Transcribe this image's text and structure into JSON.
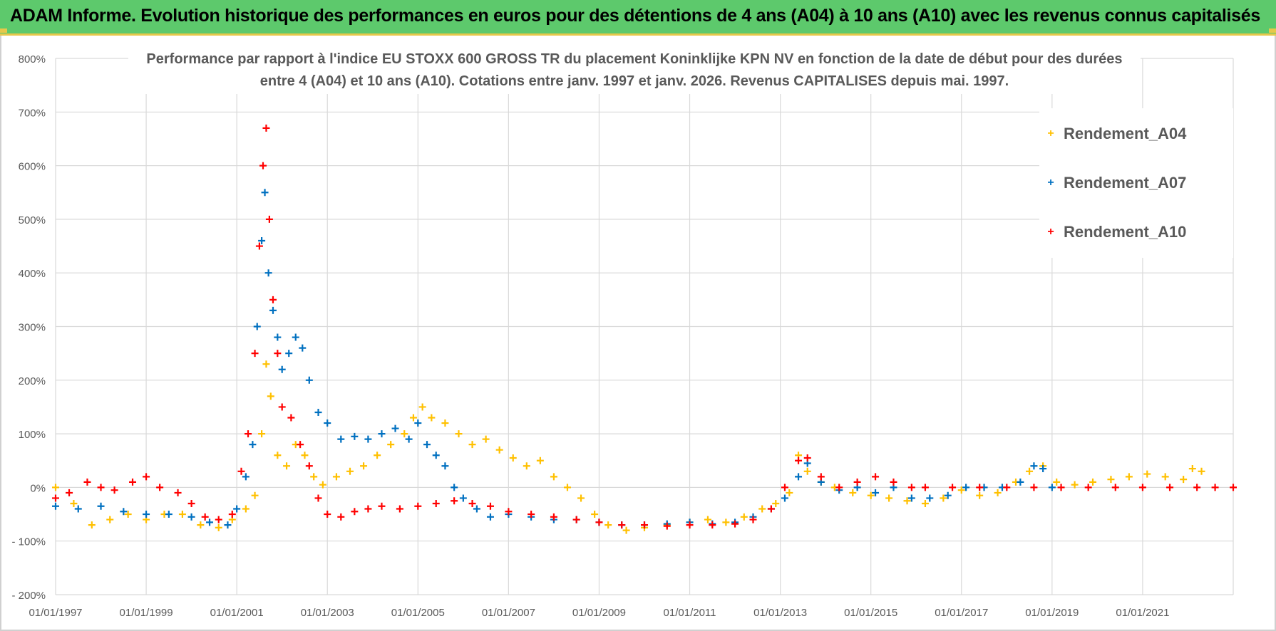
{
  "header": {
    "title": "ADAM Informe. Evolution historique des performances en euros pour des détentions de 4 ans (A04) à 10 ans (A10) avec les revenus connus capitalisés"
  },
  "colors": {
    "header_bg": "#5dc96c",
    "accent": "#e6c84a",
    "A04": "#ffc000",
    "A07": "#0070c0",
    "A10": "#ff0000",
    "grid": "#d9d9d9",
    "text": "#595959"
  },
  "chart_data": {
    "type": "scatter",
    "title_line1": "Performance par rapport à l'indice EU STOXX 600 GROSS TR  du placement Koninklijke KPN NV en fonction de la date de début pour des durées",
    "title_line2": "entre 4 (A04) et 10 ans (A10).  Cotations entre janv. 1997 et janv. 2026. Revenus CAPITALISES depuis mai. 1997.",
    "xlabel": "",
    "ylabel": "",
    "xlim": [
      1997.0,
      2023.0
    ],
    "ylim": [
      -200,
      800
    ],
    "y_ticks": [
      800,
      700,
      600,
      500,
      400,
      300,
      200,
      100,
      0,
      -100,
      -200
    ],
    "y_tick_labels": [
      "800%",
      "700%",
      "600%",
      "500%",
      "400%",
      "300%",
      "200%",
      "100%",
      "0%",
      "- 100%",
      "- 200%"
    ],
    "x_ticks": [
      1997,
      1999,
      2001,
      2003,
      2005,
      2007,
      2009,
      2011,
      2013,
      2015,
      2017,
      2019,
      2021
    ],
    "x_tick_labels": [
      "01/01/1997",
      "01/01/1999",
      "01/01/2001",
      "01/01/2003",
      "01/01/2005",
      "01/01/2007",
      "01/01/2009",
      "01/01/2011",
      "01/01/2013",
      "01/01/2015",
      "01/01/2017",
      "01/01/2019",
      "01/01/2021"
    ],
    "legend_position": "top-right",
    "series": [
      {
        "name": "Rendement_A04",
        "color": "#ffc000",
        "x": [
          1997.0,
          1997.4,
          1997.8,
          1998.2,
          1998.6,
          1999.0,
          1999.4,
          1999.8,
          2000.2,
          2000.6,
          2000.9,
          2001.2,
          2001.4,
          2001.55,
          2001.65,
          2001.75,
          2001.9,
          2002.1,
          2002.3,
          2002.5,
          2002.7,
          2002.9,
          2003.2,
          2003.5,
          2003.8,
          2004.1,
          2004.4,
          2004.7,
          2004.9,
          2005.1,
          2005.3,
          2005.6,
          2005.9,
          2006.2,
          2006.5,
          2006.8,
          2007.1,
          2007.4,
          2007.7,
          2008.0,
          2008.3,
          2008.6,
          2008.9,
          2009.2,
          2009.6,
          2010.0,
          2010.5,
          2011.0,
          2011.4,
          2011.8,
          2012.2,
          2012.6,
          2012.9,
          2013.2,
          2013.4,
          2013.6,
          2013.9,
          2014.2,
          2014.6,
          2015.0,
          2015.4,
          2015.8,
          2016.2,
          2016.6,
          2017.0,
          2017.4,
          2017.8,
          2018.2,
          2018.5,
          2018.8,
          2019.1,
          2019.5,
          2019.9,
          2020.3,
          2020.7,
          2021.1,
          2021.5,
          2021.9,
          2022.1,
          2022.3
        ],
        "y": [
          0,
          -30,
          -70,
          -60,
          -50,
          -60,
          -50,
          -50,
          -70,
          -75,
          -60,
          -40,
          -15,
          100,
          230,
          170,
          60,
          40,
          80,
          60,
          20,
          5,
          20,
          30,
          40,
          60,
          80,
          100,
          130,
          150,
          130,
          120,
          100,
          80,
          90,
          70,
          55,
          40,
          50,
          20,
          0,
          -20,
          -50,
          -70,
          -80,
          -75,
          -70,
          -65,
          -60,
          -65,
          -55,
          -40,
          -30,
          -10,
          60,
          30,
          10,
          0,
          -10,
          -15,
          -20,
          -25,
          -30,
          -20,
          -5,
          -15,
          -10,
          10,
          30,
          40,
          10,
          5,
          10,
          15,
          20,
          25,
          20,
          15,
          35,
          30
        ]
      },
      {
        "name": "Rendement_A07",
        "color": "#0070c0",
        "x": [
          1997.0,
          1997.5,
          1998.0,
          1998.5,
          1999.0,
          1999.5,
          2000.0,
          2000.4,
          2000.8,
          2001.0,
          2001.2,
          2001.35,
          2001.45,
          2001.55,
          2001.62,
          2001.7,
          2001.8,
          2001.9,
          2002.0,
          2002.15,
          2002.3,
          2002.45,
          2002.6,
          2002.8,
          2003.0,
          2003.3,
          2003.6,
          2003.9,
          2004.2,
          2004.5,
          2004.8,
          2005.0,
          2005.2,
          2005.4,
          2005.6,
          2005.8,
          2006.0,
          2006.3,
          2006.6,
          2007.0,
          2007.5,
          2008.0,
          2008.5,
          2009.0,
          2009.5,
          2010.0,
          2010.5,
          2011.0,
          2011.5,
          2012.0,
          2012.4,
          2012.8,
          2013.1,
          2013.4,
          2013.6,
          2013.9,
          2014.3,
          2014.7,
          2015.1,
          2015.5,
          2015.9,
          2016.3,
          2016.7,
          2017.1,
          2017.5,
          2017.9,
          2018.3,
          2018.6,
          2018.8,
          2019.0
        ],
        "y": [
          -35,
          -40,
          -35,
          -45,
          -50,
          -50,
          -55,
          -65,
          -70,
          -40,
          20,
          80,
          300,
          460,
          550,
          400,
          330,
          280,
          220,
          250,
          280,
          260,
          200,
          140,
          120,
          90,
          95,
          90,
          100,
          110,
          90,
          120,
          80,
          60,
          40,
          0,
          -20,
          -40,
          -55,
          -50,
          -55,
          -60,
          -60,
          -65,
          -70,
          -70,
          -68,
          -65,
          -68,
          -65,
          -55,
          -40,
          -20,
          20,
          45,
          10,
          -5,
          0,
          -10,
          0,
          -20,
          -20,
          -15,
          0,
          0,
          0,
          10,
          40,
          35,
          0
        ]
      },
      {
        "name": "Rendement_A10",
        "color": "#ff0000",
        "x": [
          1997.0,
          1997.3,
          1997.7,
          1998.0,
          1998.3,
          1998.7,
          1999.0,
          1999.3,
          1999.7,
          2000.0,
          2000.3,
          2000.6,
          2000.9,
          2001.1,
          2001.25,
          2001.4,
          2001.5,
          2001.58,
          2001.65,
          2001.72,
          2001.8,
          2001.9,
          2002.0,
          2002.2,
          2002.4,
          2002.6,
          2002.8,
          2003.0,
          2003.3,
          2003.6,
          2003.9,
          2004.2,
          2004.6,
          2005.0,
          2005.4,
          2005.8,
          2006.2,
          2006.6,
          2007.0,
          2007.5,
          2008.0,
          2008.5,
          2009.0,
          2009.5,
          2010.0,
          2010.5,
          2011.0,
          2011.5,
          2012.0,
          2012.4,
          2012.8,
          2013.1,
          2013.4,
          2013.6,
          2013.9,
          2014.3,
          2014.7,
          2015.1,
          2015.5,
          2015.9,
          2016.2,
          2016.8,
          2017.4,
          2018.0,
          2018.6,
          2019.2,
          2019.8,
          2020.4,
          2021.0,
          2021.6,
          2022.2,
          2022.6,
          2023.0
        ],
        "y": [
          -20,
          -10,
          10,
          0,
          -5,
          10,
          20,
          0,
          -10,
          -30,
          -55,
          -60,
          -50,
          30,
          100,
          250,
          450,
          600,
          670,
          500,
          350,
          250,
          150,
          130,
          80,
          40,
          -20,
          -50,
          -55,
          -45,
          -40,
          -35,
          -40,
          -35,
          -30,
          -25,
          -30,
          -35,
          -45,
          -50,
          -55,
          -60,
          -65,
          -70,
          -70,
          -72,
          -70,
          -70,
          -68,
          -60,
          -40,
          0,
          50,
          55,
          20,
          0,
          10,
          20,
          10,
          0,
          0,
          0,
          0,
          0,
          0,
          0,
          0,
          0,
          0,
          0,
          0,
          0,
          0
        ]
      }
    ]
  }
}
